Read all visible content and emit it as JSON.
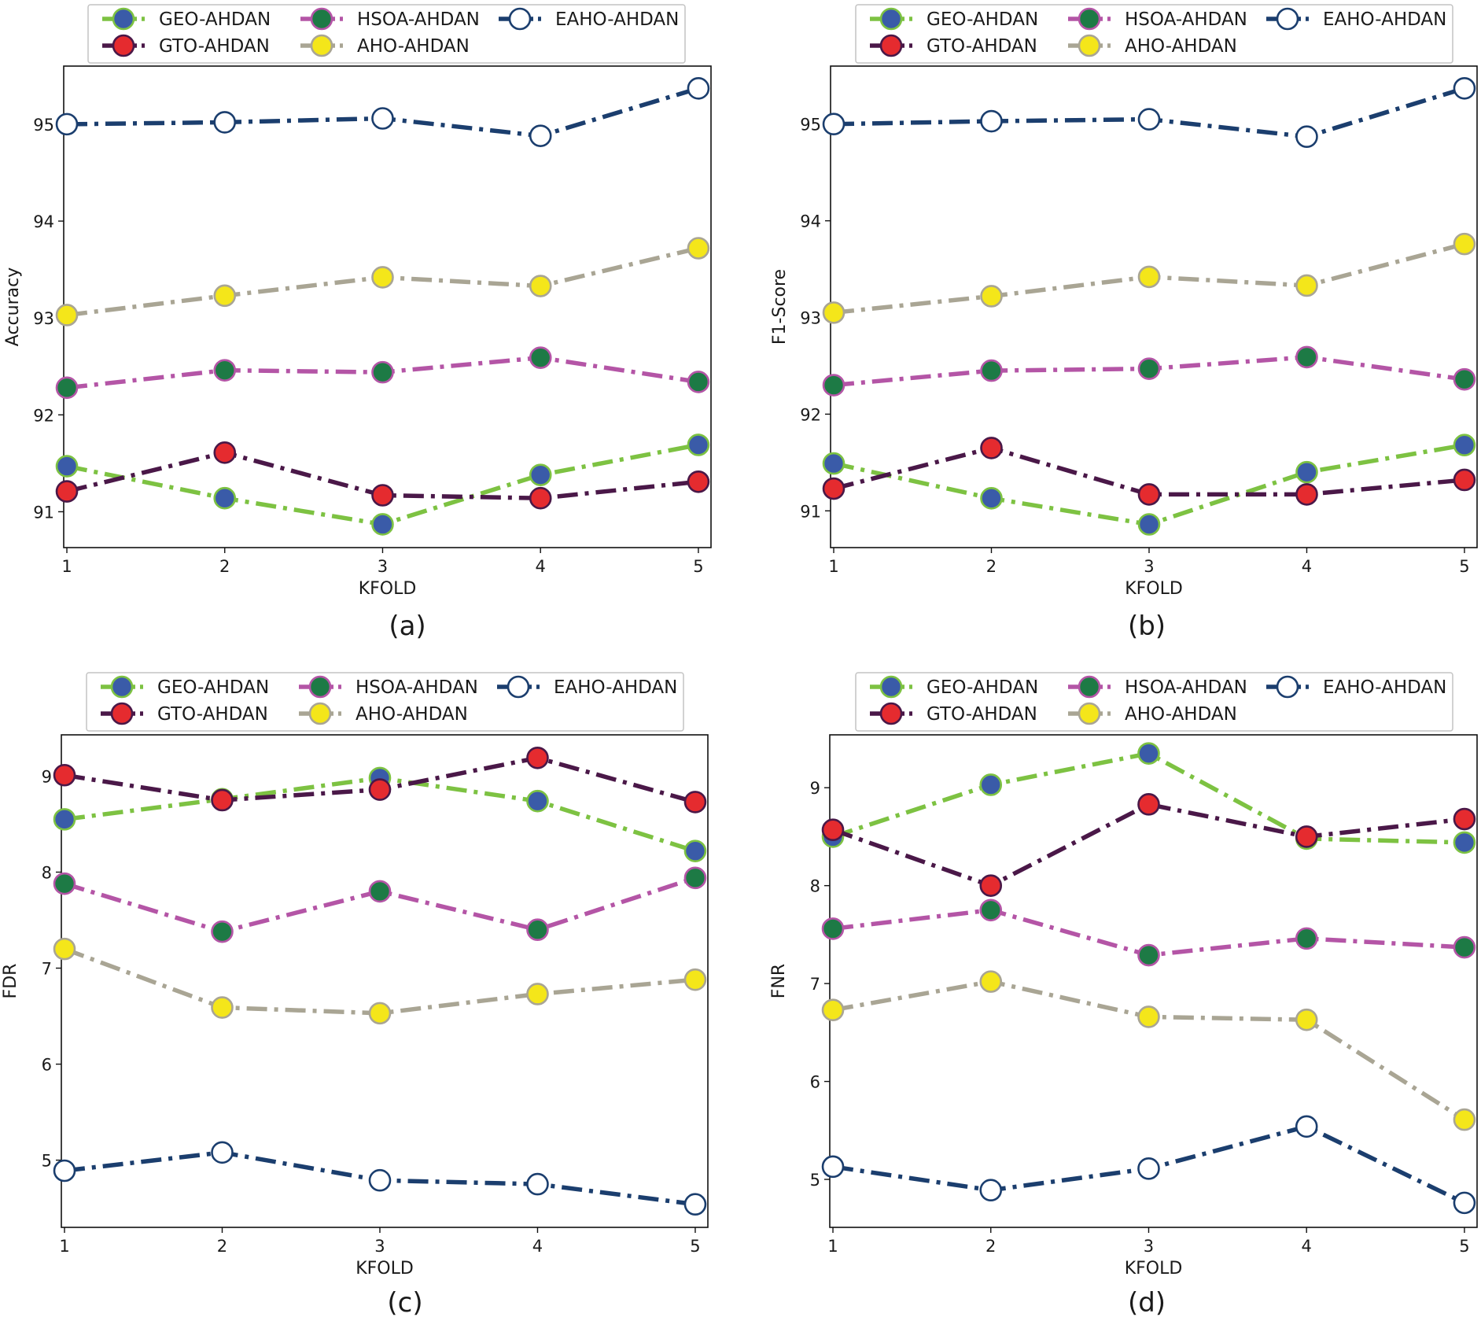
{
  "chart_data": [
    {
      "type": "line",
      "caption": "(a)",
      "xlabel": "KFOLD",
      "ylabel": "Accuracy",
      "x": [
        1,
        2,
        3,
        4,
        5
      ],
      "xlim": [
        0.98,
        5.08
      ],
      "ylim": [
        90.63,
        95.6
      ],
      "yticks": [
        91,
        92,
        93,
        94,
        95
      ],
      "series": [
        {
          "name": "GEO-AHDAN",
          "values": [
            91.47,
            91.14,
            90.87,
            91.38,
            91.69
          ]
        },
        {
          "name": "GTO-AHDAN",
          "values": [
            91.21,
            91.61,
            91.17,
            91.14,
            91.31
          ]
        },
        {
          "name": "HSOA-AHDAN",
          "values": [
            92.28,
            92.46,
            92.44,
            92.59,
            92.34
          ]
        },
        {
          "name": "AHO-AHDAN",
          "values": [
            93.03,
            93.23,
            93.42,
            93.33,
            93.72
          ]
        },
        {
          "name": "EAHO-AHDAN",
          "values": [
            95.0,
            95.02,
            95.06,
            94.88,
            95.37
          ]
        }
      ]
    },
    {
      "type": "line",
      "caption": "(b)",
      "xlabel": "KFOLD",
      "ylabel": "F1-Score",
      "x": [
        1,
        2,
        3,
        4,
        5
      ],
      "xlim": [
        0.98,
        5.08
      ],
      "ylim": [
        90.62,
        95.6
      ],
      "yticks": [
        91,
        92,
        93,
        94,
        95
      ],
      "series": [
        {
          "name": "GEO-AHDAN",
          "values": [
            91.49,
            91.13,
            90.86,
            91.4,
            91.68
          ]
        },
        {
          "name": "GTO-AHDAN",
          "values": [
            91.23,
            91.65,
            91.17,
            91.17,
            91.32
          ]
        },
        {
          "name": "HSOA-AHDAN",
          "values": [
            92.3,
            92.45,
            92.47,
            92.59,
            92.36
          ]
        },
        {
          "name": "AHO-AHDAN",
          "values": [
            93.05,
            93.22,
            93.42,
            93.33,
            93.76
          ]
        },
        {
          "name": "EAHO-AHDAN",
          "values": [
            95.0,
            95.03,
            95.05,
            94.87,
            95.37
          ]
        }
      ]
    },
    {
      "type": "line",
      "caption": "(c)",
      "xlabel": "KFOLD",
      "ylabel": "FDR",
      "x": [
        1,
        2,
        3,
        4,
        5
      ],
      "xlim": [
        0.98,
        5.08
      ],
      "ylim": [
        4.3,
        9.43
      ],
      "yticks": [
        5,
        6,
        7,
        8,
        9
      ],
      "series": [
        {
          "name": "GEO-AHDAN",
          "values": [
            8.55,
            8.76,
            8.98,
            8.74,
            8.22
          ]
        },
        {
          "name": "GTO-AHDAN",
          "values": [
            9.01,
            8.75,
            8.86,
            9.19,
            8.73
          ]
        },
        {
          "name": "HSOA-AHDAN",
          "values": [
            7.88,
            7.38,
            7.8,
            7.4,
            7.94
          ]
        },
        {
          "name": "AHO-AHDAN",
          "values": [
            7.2,
            6.59,
            6.53,
            6.73,
            6.88
          ]
        },
        {
          "name": "EAHO-AHDAN",
          "values": [
            4.89,
            5.08,
            4.79,
            4.75,
            4.54
          ]
        }
      ]
    },
    {
      "type": "line",
      "caption": "(d)",
      "xlabel": "KFOLD",
      "ylabel": "FNR",
      "x": [
        1,
        2,
        3,
        4,
        5
      ],
      "xlim": [
        0.98,
        5.08
      ],
      "ylim": [
        4.51,
        9.54
      ],
      "yticks": [
        5,
        6,
        7,
        8,
        9
      ],
      "series": [
        {
          "name": "GEO-AHDAN",
          "values": [
            8.5,
            9.03,
            9.35,
            8.48,
            8.44
          ]
        },
        {
          "name": "GTO-AHDAN",
          "values": [
            8.57,
            8.0,
            8.83,
            8.5,
            8.68
          ]
        },
        {
          "name": "HSOA-AHDAN",
          "values": [
            7.56,
            7.75,
            7.29,
            7.46,
            7.37
          ]
        },
        {
          "name": "AHO-AHDAN",
          "values": [
            6.73,
            7.02,
            6.66,
            6.63,
            5.61
          ]
        },
        {
          "name": "EAHO-AHDAN",
          "values": [
            5.13,
            4.89,
            5.11,
            5.54,
            4.76
          ]
        }
      ]
    }
  ],
  "series_styles": [
    {
      "name": "GEO-AHDAN",
      "line_color": "#7dc242",
      "marker_fill": "#3a5ba8",
      "marker_edge": "#7dc242"
    },
    {
      "name": "GTO-AHDAN",
      "line_color": "#4a1848",
      "marker_fill": "#e52b2f",
      "marker_edge": "#4a1848"
    },
    {
      "name": "HSOA-AHDAN",
      "line_color": "#b455a6",
      "marker_fill": "#1d7a45",
      "marker_edge": "#b455a6"
    },
    {
      "name": "AHO-AHDAN",
      "line_color": "#a9a594",
      "marker_fill": "#f4e61a",
      "marker_edge": "#a9a594"
    },
    {
      "name": "EAHO-AHDAN",
      "line_color": "#1b3e6e",
      "marker_fill": "#ffffff",
      "marker_edge": "#1b3e6e"
    }
  ]
}
